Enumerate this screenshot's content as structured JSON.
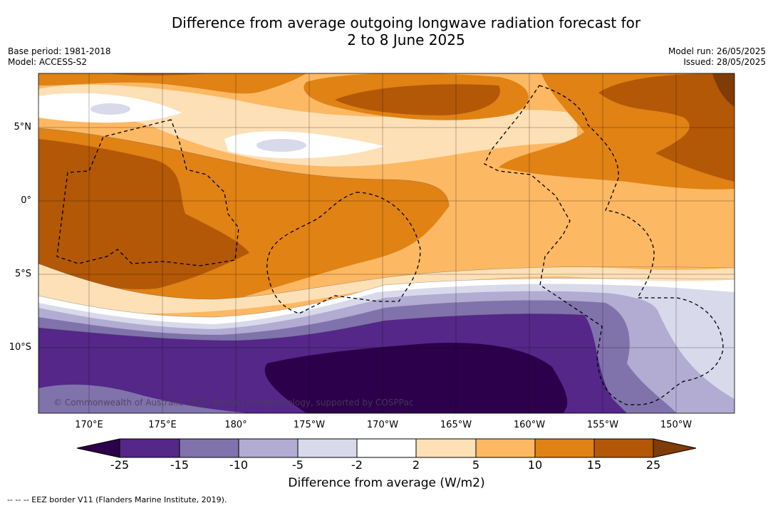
{
  "header": {
    "title_line1": "Difference from average outgoing longwave radiation forecast for",
    "title_line2": "2 to 8 June 2025",
    "base_period": "Base period: 1981-2018",
    "model": "Model: ACCESS-S2",
    "model_run": "Model run: 26/05/2025",
    "issued": "Issued: 28/05/2025"
  },
  "axes": {
    "lat_labels": [
      "5°N",
      "0°",
      "5°S",
      "10°S"
    ],
    "lon_labels": [
      "170°E",
      "175°E",
      "180°",
      "175°W",
      "170°W",
      "165°W",
      "160°W",
      "155°W",
      "150°W"
    ]
  },
  "colorbar": {
    "ticks": [
      "-25",
      "-15",
      "-10",
      "-5",
      "-2",
      "2",
      "5",
      "10",
      "15",
      "25"
    ],
    "colors": [
      "#2d004b",
      "#542788",
      "#8073ac",
      "#b2abd2",
      "#d8daeb",
      "#ffffff",
      "#fee0b6",
      "#fdb863",
      "#e08214",
      "#b35806",
      "#7f3b08"
    ],
    "title": "Difference from average (W/m2)"
  },
  "copyright": "© Commonwealth of Australia 2025, Bureau of Meteorology, supported by COSPPac",
  "footnote": "--  --  -- EEZ border V11 (Flanders Marine Institute, 2019)."
}
